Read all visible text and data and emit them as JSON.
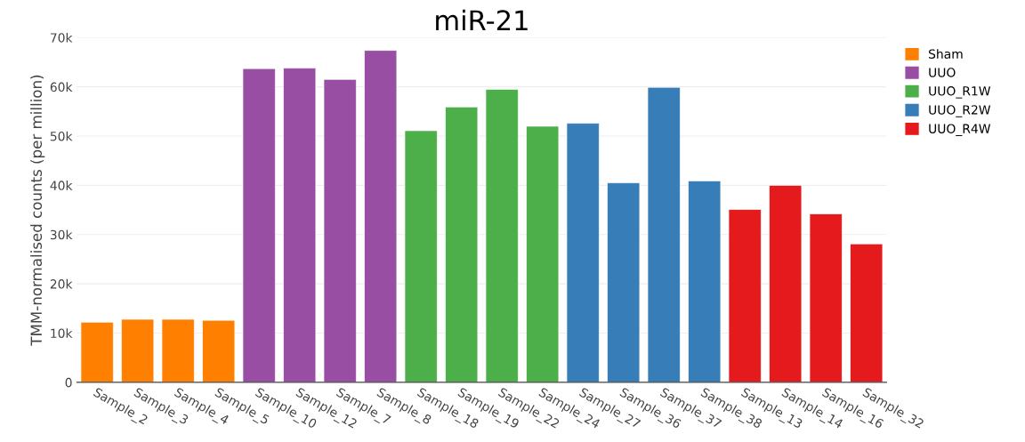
{
  "chart_data": {
    "type": "bar",
    "title": "miR-21",
    "ylabel": "TMM-normalised counts (per million)",
    "categories": [
      "Sample_2",
      "Sample_3",
      "Sample_4",
      "Sample_5",
      "Sample_10",
      "Sample_12",
      "Sample_7",
      "Sample_8",
      "Sample_18",
      "Sample_19",
      "Sample_22",
      "Sample_24",
      "Sample_27",
      "Sample_36",
      "Sample_37",
      "Sample_38",
      "Sample_13",
      "Sample_14",
      "Sample_16",
      "Sample_32"
    ],
    "series": [
      {
        "name": "Sham",
        "color": "#ff7f00",
        "values": [
          12.2,
          12.8,
          12.8,
          12.6,
          null,
          null,
          null,
          null,
          null,
          null,
          null,
          null,
          null,
          null,
          null,
          null,
          null,
          null,
          null,
          null
        ]
      },
      {
        "name": "UUO",
        "color": "#984ea3",
        "values": [
          null,
          null,
          null,
          null,
          63.7,
          63.8,
          61.5,
          67.4,
          null,
          null,
          null,
          null,
          null,
          null,
          null,
          null,
          null,
          null,
          null,
          null
        ]
      },
      {
        "name": "UUO_R1W",
        "color": "#4daf4a",
        "values": [
          null,
          null,
          null,
          null,
          null,
          null,
          null,
          null,
          51.1,
          55.9,
          59.5,
          52.0,
          null,
          null,
          null,
          null,
          null,
          null,
          null,
          null
        ]
      },
      {
        "name": "UUO_R2W",
        "color": "#377eb8",
        "values": [
          null,
          null,
          null,
          null,
          null,
          null,
          null,
          null,
          null,
          null,
          null,
          null,
          52.6,
          40.5,
          59.9,
          40.9,
          null,
          null,
          null,
          null
        ]
      },
      {
        "name": "UUO_R4W",
        "color": "#e41a1c",
        "values": [
          null,
          null,
          null,
          null,
          null,
          null,
          null,
          null,
          null,
          null,
          null,
          null,
          null,
          null,
          null,
          null,
          35.1,
          40.0,
          34.2,
          28.1
        ]
      }
    ],
    "ylim": [
      0,
      70
    ],
    "yticks": [
      0,
      {
        "value": 10,
        "label": "10k"
      },
      {
        "value": 20,
        "label": "20k"
      },
      {
        "value": 30,
        "label": "30k"
      },
      {
        "value": 40,
        "label": "40k"
      },
      {
        "value": 50,
        "label": "50k"
      },
      {
        "value": 60,
        "label": "60k"
      },
      {
        "value": 70,
        "label": "70k"
      }
    ],
    "grid": "y",
    "legend": "top right"
  }
}
